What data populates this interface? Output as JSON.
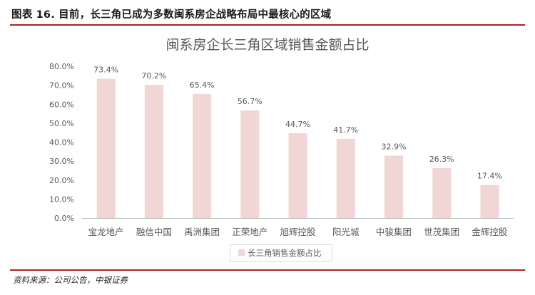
{
  "header": {
    "title": "图表 16. 目前，长三角已成为多数闽系房企战略布局中最核心的区域"
  },
  "source": "资料来源：公司公告，中银证券",
  "chart_data": {
    "type": "bar",
    "title": "闽系房企长三角区域销售金额占比",
    "categories": [
      "宝龙地产",
      "融信中国",
      "禹洲集团",
      "正荣地产",
      "旭辉控股",
      "阳光城",
      "中骏集团",
      "世茂集团",
      "金辉控股"
    ],
    "series": [
      {
        "name": "长三角销售金额占比",
        "values": [
          73.4,
          70.2,
          65.4,
          56.7,
          44.7,
          41.7,
          32.9,
          26.3,
          17.4
        ]
      }
    ],
    "data_labels": [
      "73.4%",
      "70.2%",
      "65.4%",
      "56.7%",
      "44.7%",
      "41.7%",
      "32.9%",
      "26.3%",
      "17.4%"
    ],
    "yticks": [
      "0.0%",
      "10.0%",
      "20.0%",
      "30.0%",
      "40.0%",
      "50.0%",
      "60.0%",
      "70.0%",
      "80.0%"
    ],
    "ylim": [
      0,
      80
    ],
    "grid": false,
    "legend_position": "bottom",
    "colors": {
      "bar": "#f2d5d5",
      "axis": "#bfbfbf",
      "text": "#595959",
      "accent_rule": "#b22222"
    }
  }
}
